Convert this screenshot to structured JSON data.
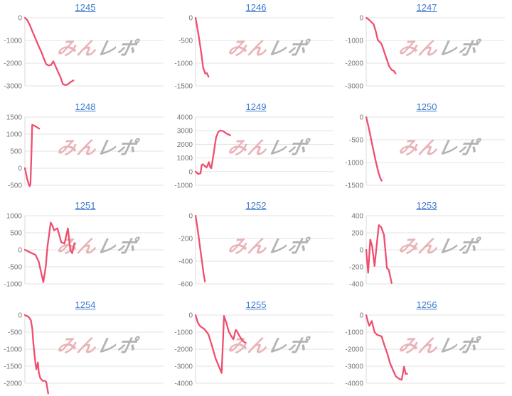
{
  "page": {
    "background": "#ffffff"
  },
  "style": {
    "line_color": "#ee4f6e",
    "grid_color": "#e3e3e3",
    "axis_color": "#d9d9d9",
    "tick_label_color": "#757575",
    "link_color": "#3a78cf"
  },
  "watermark": {
    "text_pink": "みん",
    "text_gray": "レポ",
    "pink": "#e9b3b8",
    "gray": "#b3b3b3"
  },
  "chart_data": [
    {
      "type": "line",
      "id": "1245",
      "title": "1245",
      "ticks": [
        0,
        -1000,
        -2000,
        -3000
      ],
      "ymax": 0,
      "ymin": -3000,
      "points": [
        [
          0,
          0
        ],
        [
          0.017,
          -100
        ],
        [
          0.034,
          -300
        ],
        [
          0.051,
          -550
        ],
        [
          0.068,
          -800
        ],
        [
          0.085,
          -1050
        ],
        [
          0.103,
          -1300
        ],
        [
          0.12,
          -1520
        ],
        [
          0.137,
          -1800
        ],
        [
          0.154,
          -2050
        ],
        [
          0.171,
          -2100
        ],
        [
          0.188,
          -2080
        ],
        [
          0.205,
          -1920
        ],
        [
          0.222,
          -2150
        ],
        [
          0.24,
          -2400
        ],
        [
          0.257,
          -2620
        ],
        [
          0.274,
          -2920
        ],
        [
          0.29,
          -2960
        ],
        [
          0.308,
          -2940
        ],
        [
          0.325,
          -2850
        ],
        [
          0.35,
          -2760
        ]
      ]
    },
    {
      "type": "line",
      "id": "1246",
      "title": "1246",
      "ticks": [
        0,
        -500,
        -1000,
        -1500
      ],
      "ymax": 0,
      "ymin": -1500,
      "points": [
        [
          0,
          0
        ],
        [
          0.02,
          -350
        ],
        [
          0.04,
          -750
        ],
        [
          0.055,
          -1100
        ],
        [
          0.07,
          -1230
        ],
        [
          0.082,
          -1220
        ],
        [
          0.094,
          -1300
        ]
      ]
    },
    {
      "type": "line",
      "id": "1247",
      "title": "1247",
      "ticks": [
        0,
        -1000,
        -2000,
        -3000
      ],
      "ymax": 0,
      "ymin": -3000,
      "points": [
        [
          0,
          0
        ],
        [
          0.018,
          -75
        ],
        [
          0.036,
          -180
        ],
        [
          0.054,
          -290
        ],
        [
          0.071,
          -640
        ],
        [
          0.083,
          -970
        ],
        [
          0.094,
          -1050
        ],
        [
          0.105,
          -1100
        ],
        [
          0.114,
          -1210
        ],
        [
          0.131,
          -1520
        ],
        [
          0.148,
          -1830
        ],
        [
          0.165,
          -2130
        ],
        [
          0.182,
          -2290
        ],
        [
          0.199,
          -2340
        ],
        [
          0.212,
          -2450
        ]
      ]
    },
    {
      "type": "line",
      "id": "1248",
      "title": "1248",
      "ticks": [
        1500,
        1000,
        500,
        0,
        -500
      ],
      "ymax": 1500,
      "ymin": -500,
      "points": [
        [
          0,
          0
        ],
        [
          0.008,
          -150
        ],
        [
          0.017,
          -320
        ],
        [
          0.026,
          -450
        ],
        [
          0.034,
          -530
        ],
        [
          0.04,
          -470
        ],
        [
          0.047,
          420
        ],
        [
          0.053,
          1270
        ],
        [
          0.07,
          1245
        ],
        [
          0.086,
          1205
        ],
        [
          0.103,
          1160
        ]
      ]
    },
    {
      "type": "line",
      "id": "1249",
      "title": "1249",
      "ticks": [
        4000,
        3000,
        2000,
        1000,
        0,
        -1000
      ],
      "ymax": 4000,
      "ymin": -1000,
      "points": [
        [
          0,
          0
        ],
        [
          0.018,
          -170
        ],
        [
          0.036,
          -130
        ],
        [
          0.044,
          470
        ],
        [
          0.053,
          540
        ],
        [
          0.07,
          370
        ],
        [
          0.079,
          300
        ],
        [
          0.088,
          500
        ],
        [
          0.096,
          700
        ],
        [
          0.105,
          340
        ],
        [
          0.114,
          250
        ],
        [
          0.131,
          1340
        ],
        [
          0.148,
          2520
        ],
        [
          0.165,
          2940
        ],
        [
          0.182,
          3020
        ],
        [
          0.199,
          2970
        ],
        [
          0.225,
          2780
        ],
        [
          0.251,
          2660
        ]
      ]
    },
    {
      "type": "line",
      "id": "1250",
      "title": "1250",
      "ticks": [
        0,
        -500,
        -1000,
        -1500
      ],
      "ymax": 0,
      "ymin": -1500,
      "points": [
        [
          0,
          0
        ],
        [
          0.018,
          -230
        ],
        [
          0.036,
          -500
        ],
        [
          0.054,
          -760
        ],
        [
          0.071,
          -1000
        ],
        [
          0.089,
          -1230
        ],
        [
          0.1,
          -1330
        ],
        [
          0.111,
          -1400
        ]
      ]
    },
    {
      "type": "line",
      "id": "1251",
      "title": "1251",
      "ticks": [
        1000,
        500,
        0,
        -500,
        -1000
      ],
      "ymax": 1000,
      "ymin": -1000,
      "points": [
        [
          0,
          0
        ],
        [
          0.04,
          -80
        ],
        [
          0.077,
          -150
        ],
        [
          0.1,
          -350
        ],
        [
          0.133,
          -950
        ],
        [
          0.15,
          -500
        ],
        [
          0.163,
          100
        ],
        [
          0.186,
          800
        ],
        [
          0.2,
          700
        ],
        [
          0.21,
          570
        ],
        [
          0.225,
          610
        ],
        [
          0.235,
          630
        ],
        [
          0.25,
          400
        ],
        [
          0.262,
          220
        ],
        [
          0.276,
          200
        ],
        [
          0.285,
          180
        ],
        [
          0.31,
          630
        ],
        [
          0.327,
          0
        ],
        [
          0.341,
          -100
        ],
        [
          0.358,
          200
        ]
      ]
    },
    {
      "type": "line",
      "id": "1252",
      "title": "1252",
      "ticks": [
        0,
        -200,
        -400,
        -600
      ],
      "ymax": 0,
      "ymin": -600,
      "points": [
        [
          0,
          0
        ],
        [
          0.012,
          -90
        ],
        [
          0.024,
          -200
        ],
        [
          0.036,
          -310
        ],
        [
          0.048,
          -420
        ],
        [
          0.058,
          -510
        ],
        [
          0.068,
          -580
        ]
      ]
    },
    {
      "type": "line",
      "id": "1253",
      "title": "1253",
      "ticks": [
        400,
        200,
        0,
        -200,
        -400
      ],
      "ymax": 400,
      "ymin": -400,
      "points": [
        [
          0,
          0
        ],
        [
          0.014,
          -270
        ],
        [
          0.029,
          120
        ],
        [
          0.043,
          40
        ],
        [
          0.06,
          -190
        ],
        [
          0.091,
          290
        ],
        [
          0.108,
          265
        ],
        [
          0.128,
          175
        ],
        [
          0.149,
          -215
        ],
        [
          0.163,
          -235
        ],
        [
          0.183,
          -390
        ]
      ]
    },
    {
      "type": "line",
      "id": "1254",
      "title": "1254",
      "ticks": [
        0,
        -500,
        -1000,
        -1500,
        -2000
      ],
      "ymax": 0,
      "ymin": -2000,
      "points": [
        [
          0,
          0
        ],
        [
          0.026,
          -50
        ],
        [
          0.043,
          -150
        ],
        [
          0.054,
          -410
        ],
        [
          0.06,
          -780
        ],
        [
          0.068,
          -1110
        ],
        [
          0.077,
          -1440
        ],
        [
          0.083,
          -1590
        ],
        [
          0.088,
          -1480
        ],
        [
          0.094,
          -1390
        ],
        [
          0.1,
          -1670
        ],
        [
          0.111,
          -1850
        ],
        [
          0.128,
          -1930
        ],
        [
          0.145,
          -1930
        ],
        [
          0.154,
          -1960
        ],
        [
          0.168,
          -2300
        ]
      ]
    },
    {
      "type": "line",
      "id": "1255",
      "title": "1255",
      "ticks": [
        0,
        -1000,
        -2000,
        -3000,
        -4000
      ],
      "ymax": 0,
      "ymin": -4000,
      "points": [
        [
          0,
          0
        ],
        [
          0.017,
          -450
        ],
        [
          0.034,
          -660
        ],
        [
          0.06,
          -800
        ],
        [
          0.077,
          -950
        ],
        [
          0.094,
          -1150
        ],
        [
          0.12,
          -1850
        ],
        [
          0.145,
          -2560
        ],
        [
          0.171,
          -3060
        ],
        [
          0.188,
          -3400
        ],
        [
          0.205,
          -50
        ],
        [
          0.222,
          -450
        ],
        [
          0.239,
          -950
        ],
        [
          0.256,
          -1220
        ],
        [
          0.273,
          -1430
        ],
        [
          0.29,
          -870
        ],
        [
          0.299,
          -950
        ],
        [
          0.316,
          -1220
        ],
        [
          0.333,
          -1430
        ],
        [
          0.35,
          -1580
        ],
        [
          0.359,
          -1620
        ]
      ]
    },
    {
      "type": "line",
      "id": "1256",
      "title": "1256",
      "ticks": [
        0,
        -1000,
        -2000,
        -3000,
        -4000
      ],
      "ymax": 0,
      "ymin": -4000,
      "points": [
        [
          0,
          0
        ],
        [
          0.012,
          -380
        ],
        [
          0.022,
          -630
        ],
        [
          0.04,
          -350
        ],
        [
          0.06,
          -1000
        ],
        [
          0.077,
          -1150
        ],
        [
          0.094,
          -1200
        ],
        [
          0.111,
          -1250
        ],
        [
          0.128,
          -1700
        ],
        [
          0.154,
          -2300
        ],
        [
          0.171,
          -2800
        ],
        [
          0.197,
          -3300
        ],
        [
          0.214,
          -3600
        ],
        [
          0.239,
          -3750
        ],
        [
          0.256,
          -3800
        ],
        [
          0.273,
          -3030
        ],
        [
          0.285,
          -3450
        ],
        [
          0.296,
          -3440
        ]
      ]
    }
  ]
}
